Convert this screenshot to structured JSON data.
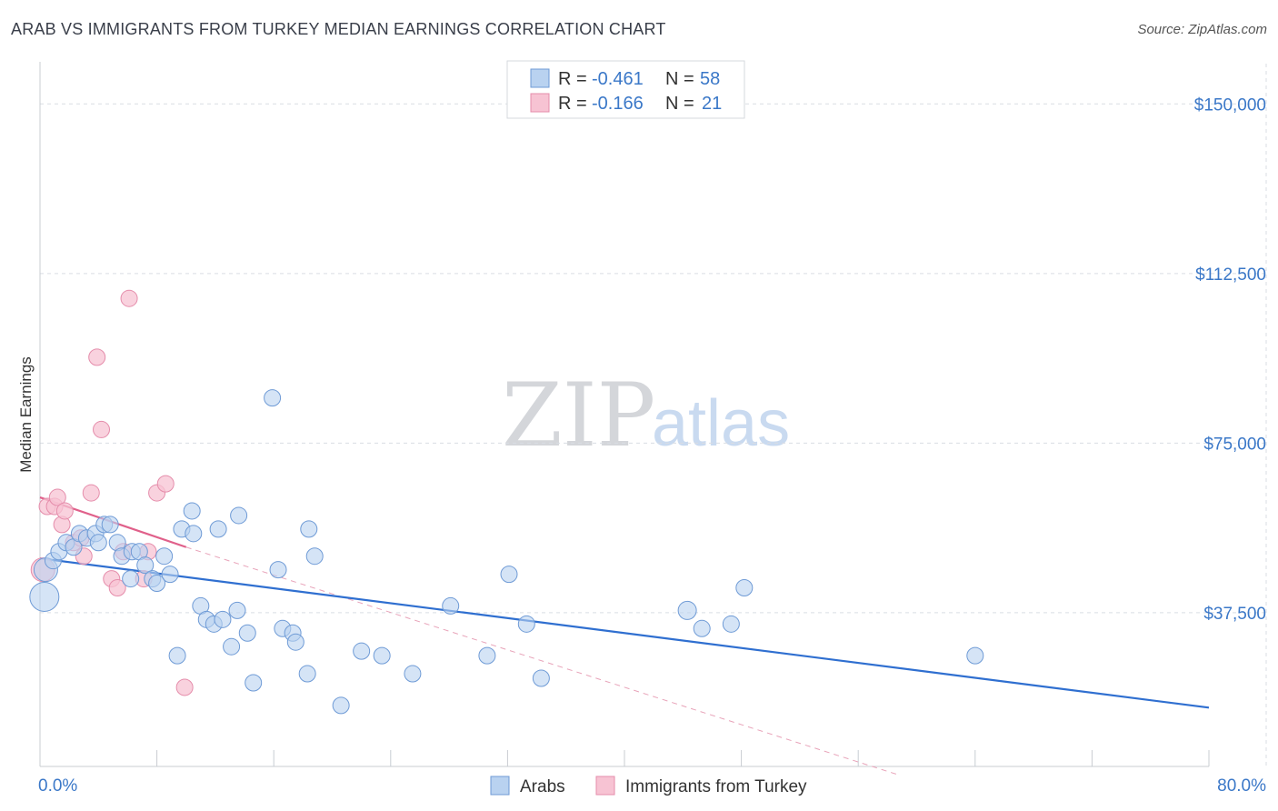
{
  "header": {
    "title": "ARAB VS IMMIGRANTS FROM TURKEY MEDIAN EARNINGS CORRELATION CHART",
    "source": "Source: ZipAtlas.com"
  },
  "watermark": {
    "zip": "ZIP",
    "atlas": "atlas"
  },
  "colors": {
    "arabs": "#3b78c8",
    "arabs_fill": "#b9d2f0",
    "turkey": "#e0608a",
    "turkey_fill": "#f7c3d3",
    "grid": "#d9dde3"
  },
  "legend": {
    "rows": [
      {
        "r_label": "R =",
        "r_value": "-0.461",
        "n_label": "N =",
        "n_value": "58"
      },
      {
        "r_label": "R =",
        "r_value": "-0.166",
        "n_label": "N =",
        "n_value": "21"
      }
    ]
  },
  "bottom_legend": [
    "Arabs",
    "Immigrants from Turkey"
  ],
  "chart_data": {
    "type": "scatter",
    "title": "ARAB VS IMMIGRANTS FROM TURKEY MEDIAN EARNINGS CORRELATION CHART",
    "xlabel": "",
    "ylabel": "Median Earnings",
    "xlim": [
      0,
      80
    ],
    "ylim": [
      3500,
      157500
    ],
    "x_tick_labels": [
      "0.0%",
      "80.0%"
    ],
    "y_ticks": [
      37500,
      75000,
      112500,
      150000
    ],
    "y_tick_labels": [
      "$37,500",
      "$75,000",
      "$112,500",
      "$150,000"
    ],
    "series": [
      {
        "name": "Arabs",
        "color": "#3b78c8",
        "points": [
          {
            "x": 0.3,
            "y": 41000,
            "s": 16
          },
          {
            "x": 0.4,
            "y": 47000,
            "s": 13
          },
          {
            "x": 0.9,
            "y": 49000,
            "s": 9
          },
          {
            "x": 1.3,
            "y": 51000,
            "s": 9
          },
          {
            "x": 1.8,
            "y": 53000,
            "s": 9
          },
          {
            "x": 2.3,
            "y": 52000,
            "s": 9
          },
          {
            "x": 2.7,
            "y": 55000,
            "s": 9
          },
          {
            "x": 3.2,
            "y": 54000,
            "s": 9
          },
          {
            "x": 3.8,
            "y": 55000,
            "s": 9
          },
          {
            "x": 4.0,
            "y": 53000,
            "s": 9
          },
          {
            "x": 4.4,
            "y": 57000,
            "s": 9
          },
          {
            "x": 4.8,
            "y": 57000,
            "s": 9
          },
          {
            "x": 5.3,
            "y": 53000,
            "s": 9
          },
          {
            "x": 5.6,
            "y": 50000,
            "s": 9
          },
          {
            "x": 6.2,
            "y": 45000,
            "s": 9
          },
          {
            "x": 6.3,
            "y": 51000,
            "s": 9
          },
          {
            "x": 6.8,
            "y": 51000,
            "s": 9
          },
          {
            "x": 7.2,
            "y": 48000,
            "s": 9
          },
          {
            "x": 7.7,
            "y": 45000,
            "s": 9
          },
          {
            "x": 8.0,
            "y": 44000,
            "s": 9
          },
          {
            "x": 8.5,
            "y": 50000,
            "s": 9
          },
          {
            "x": 8.9,
            "y": 46000,
            "s": 9
          },
          {
            "x": 9.4,
            "y": 28000,
            "s": 9
          },
          {
            "x": 9.7,
            "y": 56000,
            "s": 9
          },
          {
            "x": 10.4,
            "y": 60000,
            "s": 9
          },
          {
            "x": 10.5,
            "y": 55000,
            "s": 9
          },
          {
            "x": 11.0,
            "y": 39000,
            "s": 9
          },
          {
            "x": 11.4,
            "y": 36000,
            "s": 9
          },
          {
            "x": 11.9,
            "y": 35000,
            "s": 9
          },
          {
            "x": 12.2,
            "y": 56000,
            "s": 9
          },
          {
            "x": 12.5,
            "y": 36000,
            "s": 9
          },
          {
            "x": 13.1,
            "y": 30000,
            "s": 9
          },
          {
            "x": 13.5,
            "y": 38000,
            "s": 9
          },
          {
            "x": 13.6,
            "y": 59000,
            "s": 9
          },
          {
            "x": 14.2,
            "y": 33000,
            "s": 9
          },
          {
            "x": 14.6,
            "y": 22000,
            "s": 9
          },
          {
            "x": 15.9,
            "y": 85000,
            "s": 9
          },
          {
            "x": 16.3,
            "y": 47000,
            "s": 9
          },
          {
            "x": 16.6,
            "y": 34000,
            "s": 9
          },
          {
            "x": 17.3,
            "y": 33000,
            "s": 9
          },
          {
            "x": 17.5,
            "y": 31000,
            "s": 9
          },
          {
            "x": 18.3,
            "y": 24000,
            "s": 9
          },
          {
            "x": 18.4,
            "y": 56000,
            "s": 9
          },
          {
            "x": 18.8,
            "y": 50000,
            "s": 9
          },
          {
            "x": 20.6,
            "y": 17000,
            "s": 9
          },
          {
            "x": 22.0,
            "y": 29000,
            "s": 9
          },
          {
            "x": 23.4,
            "y": 28000,
            "s": 9
          },
          {
            "x": 25.5,
            "y": 24000,
            "s": 9
          },
          {
            "x": 28.1,
            "y": 39000,
            "s": 9
          },
          {
            "x": 30.6,
            "y": 28000,
            "s": 9
          },
          {
            "x": 32.1,
            "y": 46000,
            "s": 9
          },
          {
            "x": 33.3,
            "y": 35000,
            "s": 9
          },
          {
            "x": 34.3,
            "y": 23000,
            "s": 9
          },
          {
            "x": 44.3,
            "y": 38000,
            "s": 10
          },
          {
            "x": 45.3,
            "y": 34000,
            "s": 9
          },
          {
            "x": 47.3,
            "y": 35000,
            "s": 9
          },
          {
            "x": 48.2,
            "y": 43000,
            "s": 9
          },
          {
            "x": 64.0,
            "y": 28000,
            "s": 9
          }
        ],
        "trend": {
          "x": [
            0,
            80
          ],
          "y": [
            49500,
            16500
          ]
        }
      },
      {
        "name": "Immigrants from Turkey",
        "color": "#e0608a",
        "points": [
          {
            "x": 0.2,
            "y": 47000,
            "s": 13
          },
          {
            "x": 0.5,
            "y": 61000,
            "s": 9
          },
          {
            "x": 1.0,
            "y": 61000,
            "s": 9
          },
          {
            "x": 1.2,
            "y": 63000,
            "s": 9
          },
          {
            "x": 1.5,
            "y": 57000,
            "s": 9
          },
          {
            "x": 1.7,
            "y": 60000,
            "s": 9
          },
          {
            "x": 2.3,
            "y": 53000,
            "s": 9
          },
          {
            "x": 2.8,
            "y": 54000,
            "s": 9
          },
          {
            "x": 3.0,
            "y": 50000,
            "s": 9
          },
          {
            "x": 3.5,
            "y": 64000,
            "s": 9
          },
          {
            "x": 3.9,
            "y": 94000,
            "s": 9
          },
          {
            "x": 4.2,
            "y": 78000,
            "s": 9
          },
          {
            "x": 4.9,
            "y": 45000,
            "s": 9
          },
          {
            "x": 5.3,
            "y": 43000,
            "s": 9
          },
          {
            "x": 5.7,
            "y": 51000,
            "s": 9
          },
          {
            "x": 6.1,
            "y": 107000,
            "s": 9
          },
          {
            "x": 7.1,
            "y": 45000,
            "s": 9
          },
          {
            "x": 7.4,
            "y": 51000,
            "s": 9
          },
          {
            "x": 8.0,
            "y": 64000,
            "s": 9
          },
          {
            "x": 8.6,
            "y": 66000,
            "s": 9
          },
          {
            "x": 9.9,
            "y": 21000,
            "s": 9
          }
        ],
        "trend": {
          "x": [
            0,
            10
          ],
          "y": [
            63000,
            52000
          ]
        },
        "trend_extended": {
          "x": [
            10,
            58.6
          ],
          "y": [
            52000,
            1800
          ]
        }
      }
    ]
  }
}
